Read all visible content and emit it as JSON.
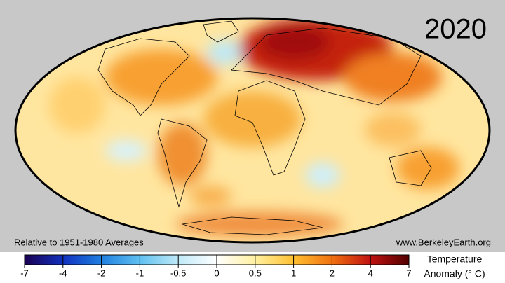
{
  "map": {
    "year": "2020",
    "note": "Relative to 1951-1980 Averages",
    "source": "www.BerkeleyEarth.org"
  },
  "legend": {
    "title_lines": [
      "Temperature",
      "Anomaly (° C)"
    ],
    "ticks": [
      -7,
      -4,
      -2,
      -1,
      -0.5,
      0,
      0.5,
      1,
      2,
      4,
      7
    ],
    "colors": [
      "#1a0050",
      "#1030c0",
      "#2080e0",
      "#60c0f0",
      "#c0eaf8",
      "#ffffff",
      "#fff0a0",
      "#ffc030",
      "#f07010",
      "#c01010",
      "#500000"
    ]
  }
}
